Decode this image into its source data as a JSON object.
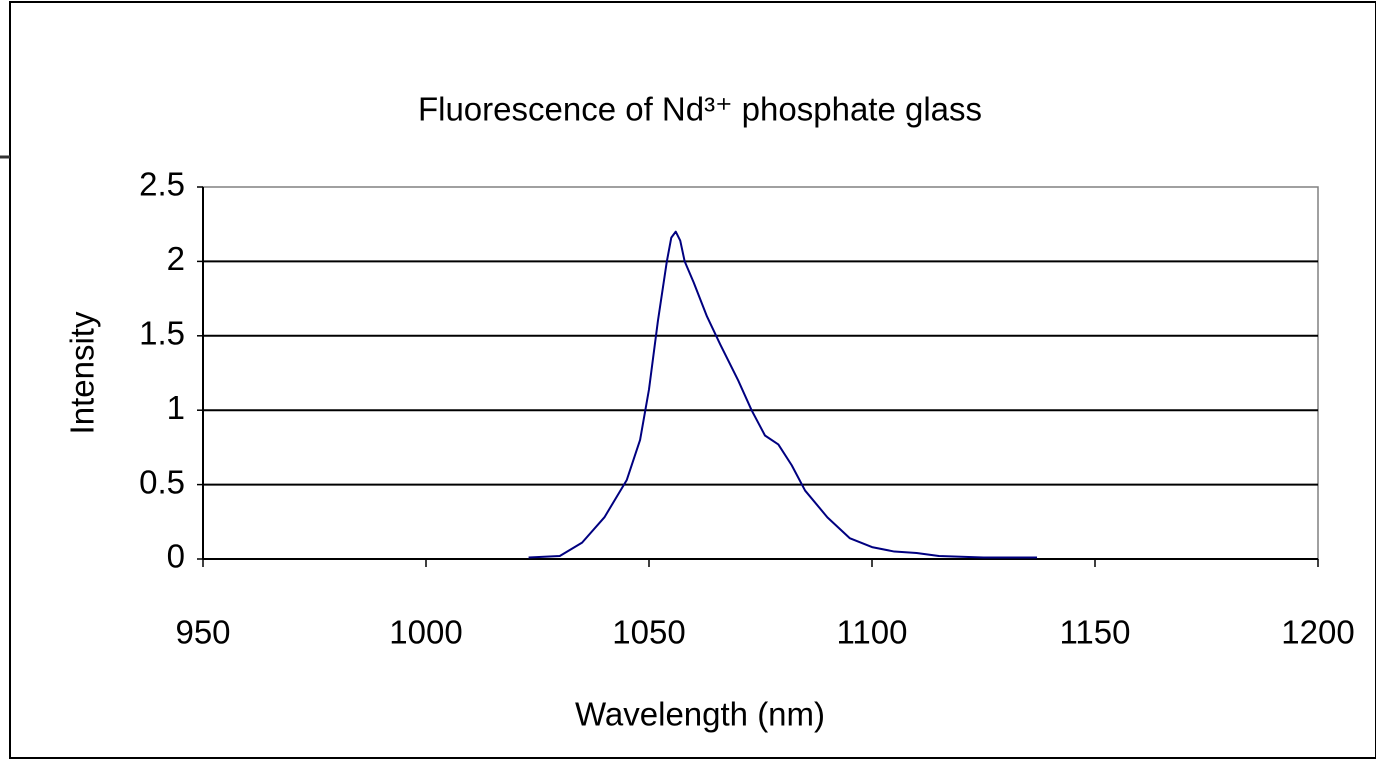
{
  "chart_data": {
    "type": "line",
    "title": "Fluorescence of Nd³⁺ phosphate glass",
    "x_label": "Wavelength (nm)",
    "y_label": "Intensity",
    "xlim": [
      950,
      1200
    ],
    "xticks": [
      950,
      1000,
      1050,
      1100,
      1150,
      1200
    ],
    "ylim": [
      0,
      2.5
    ],
    "yticks": [
      0,
      0.5,
      1,
      1.5,
      2,
      2.5
    ],
    "grid": true,
    "x": [
      1023,
      1030,
      1035,
      1040,
      1043,
      1045,
      1048,
      1050,
      1052,
      1054,
      1055,
      1056,
      1057,
      1058,
      1060,
      1063,
      1066,
      1070,
      1073,
      1076,
      1079,
      1082,
      1085,
      1090,
      1095,
      1100,
      1105,
      1110,
      1115,
      1125,
      1137
    ],
    "series": [
      {
        "name": "Intensity",
        "color": "#000080",
        "values": [
          0.01,
          0.02,
          0.11,
          0.28,
          0.43,
          0.53,
          0.8,
          1.14,
          1.6,
          2.0,
          2.16,
          2.2,
          2.14,
          2.0,
          1.86,
          1.63,
          1.44,
          1.2,
          1.0,
          0.83,
          0.77,
          0.63,
          0.46,
          0.28,
          0.14,
          0.08,
          0.05,
          0.04,
          0.02,
          0.01,
          0.01
        ]
      }
    ]
  }
}
